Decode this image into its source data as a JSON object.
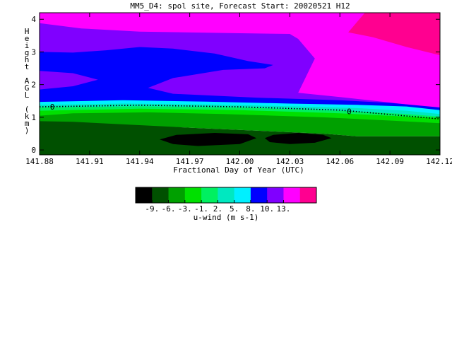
{
  "chart_data": {
    "type": "heatmap",
    "title": "MM5_D4: spol site,  Forecast Start: 20020521 H12",
    "xlabel": "Fractional Day of Year (UTC)",
    "ylabel": "Height AGL (km)",
    "x_tick_labels": [
      "141.88",
      "141.91",
      "141.94",
      "141.97",
      "142.00",
      "142.03",
      "142.06",
      "142.09",
      "142.12"
    ],
    "x_ticks": [
      141.88,
      141.91,
      141.94,
      141.97,
      142.0,
      142.03,
      142.06,
      142.09,
      142.12
    ],
    "xlim": [
      141.88,
      142.12
    ],
    "y_tick_labels": [
      "0",
      "1",
      "2",
      "3",
      "4"
    ],
    "y_ticks": [
      0,
      1,
      2,
      3,
      4
    ],
    "ylim": [
      -0.15,
      4.2
    ],
    "contour_label": "0",
    "contour_zero_line": [
      {
        "x": 141.88,
        "y": 1.32
      },
      {
        "x": 141.94,
        "y": 1.37
      },
      {
        "x": 142.0,
        "y": 1.32
      },
      {
        "x": 142.06,
        "y": 1.22
      },
      {
        "x": 142.12,
        "y": 0.95
      }
    ],
    "colorbar": {
      "label": "u-wind (m s-1)",
      "tick_labels": [
        "-9.",
        "-6.",
        "-3.",
        "-1.",
        "2.",
        "5.",
        "8.",
        "10.",
        "13."
      ],
      "colors": [
        "#000000",
        "#005000",
        "#00a000",
        "#00e000",
        "#00f060",
        "#00e8c0",
        "#00f0ff",
        "#0000ff",
        "#8000ff",
        "#ff00ff",
        "#ff0090"
      ]
    },
    "regions": [
      {
        "level": "5 to 8",
        "color": "#8000ff",
        "polygon": [
          [
            141.88,
            4.2
          ],
          [
            142.12,
            4.2
          ],
          [
            142.12,
            1.28
          ],
          [
            141.88,
            1.5
          ]
        ]
      },
      {
        "level": "8 to 10",
        "color": "#ff00ff",
        "polygon": [
          [
            141.88,
            4.2
          ],
          [
            142.12,
            4.2
          ],
          [
            142.12,
            1.28
          ],
          [
            142.06,
            1.62
          ],
          [
            142.035,
            1.75
          ],
          [
            142.045,
            2.8
          ],
          [
            142.035,
            3.4
          ],
          [
            142.03,
            3.55
          ],
          [
            141.99,
            3.58
          ],
          [
            141.94,
            3.62
          ],
          [
            141.905,
            3.72
          ],
          [
            141.88,
            3.88
          ]
        ]
      },
      {
        "level": "10 to 13",
        "color": "#ff0090",
        "polygon": [
          [
            142.075,
            4.2
          ],
          [
            142.12,
            4.2
          ],
          [
            142.12,
            2.9
          ],
          [
            142.1,
            3.15
          ],
          [
            142.08,
            3.45
          ],
          [
            142.065,
            3.6
          ]
        ]
      },
      {
        "level": "2 to 5",
        "color": "#0000ff",
        "polygon": [
          [
            141.88,
            3.0
          ],
          [
            141.9,
            2.98
          ],
          [
            141.92,
            3.05
          ],
          [
            141.94,
            3.15
          ],
          [
            141.96,
            3.1
          ],
          [
            141.985,
            2.95
          ],
          [
            142.005,
            2.72
          ],
          [
            142.02,
            2.6
          ],
          [
            142.015,
            2.5
          ],
          [
            141.99,
            2.45
          ],
          [
            141.96,
            2.2
          ],
          [
            141.945,
            1.9
          ],
          [
            141.96,
            1.72
          ],
          [
            142.01,
            1.6
          ],
          [
            142.06,
            1.52
          ],
          [
            142.09,
            1.44
          ],
          [
            142.12,
            1.3
          ],
          [
            142.12,
            1.02
          ],
          [
            141.88,
            1.35
          ],
          [
            141.88,
            1.85
          ],
          [
            141.9,
            1.95
          ],
          [
            141.915,
            2.15
          ],
          [
            141.9,
            2.35
          ],
          [
            141.88,
            2.42
          ]
        ]
      },
      {
        "level": "-1 to 2",
        "color": "#00f0ff",
        "polygon": [
          [
            141.88,
            1.47
          ],
          [
            141.93,
            1.52
          ],
          [
            141.98,
            1.48
          ],
          [
            142.03,
            1.42
          ],
          [
            142.07,
            1.38
          ],
          [
            142.1,
            1.33
          ],
          [
            142.12,
            1.22
          ],
          [
            142.12,
            0.95
          ],
          [
            141.88,
            1.3
          ]
        ]
      },
      {
        "level": "-1 to 2",
        "color": "#00e8c0",
        "polygon": [
          [
            141.88,
            1.38
          ],
          [
            141.93,
            1.42
          ],
          [
            141.98,
            1.39
          ],
          [
            142.03,
            1.34
          ],
          [
            142.07,
            1.28
          ],
          [
            142.1,
            1.2
          ],
          [
            142.12,
            1.1
          ],
          [
            142.12,
            0.92
          ],
          [
            141.88,
            1.26
          ]
        ]
      },
      {
        "level": "-1 to 2",
        "color": "#00f060",
        "polygon": [
          [
            141.88,
            1.3
          ],
          [
            141.94,
            1.34
          ],
          [
            142.0,
            1.3
          ],
          [
            142.06,
            1.2
          ],
          [
            142.1,
            1.1
          ],
          [
            142.12,
            1.02
          ],
          [
            142.12,
            0.88
          ],
          [
            141.88,
            1.18
          ]
        ]
      },
      {
        "level": "-3 to -1",
        "color": "#00e000",
        "polygon": [
          [
            141.88,
            1.2
          ],
          [
            141.94,
            1.26
          ],
          [
            142.0,
            1.22
          ],
          [
            142.06,
            1.12
          ],
          [
            142.1,
            1.02
          ],
          [
            142.12,
            0.98
          ],
          [
            142.12,
            0.7
          ],
          [
            141.88,
            1.0
          ]
        ]
      },
      {
        "level": "-6 to -3",
        "color": "#00a000",
        "polygon": [
          [
            141.88,
            1.05
          ],
          [
            141.9,
            1.12
          ],
          [
            141.945,
            1.15
          ],
          [
            141.99,
            1.1
          ],
          [
            142.05,
            1.0
          ],
          [
            142.09,
            0.9
          ],
          [
            142.12,
            0.82
          ],
          [
            142.12,
            0.42
          ],
          [
            142.07,
            0.42
          ],
          [
            142.05,
            0.5
          ],
          [
            141.97,
            0.68
          ],
          [
            141.9,
            0.82
          ],
          [
            141.88,
            0.82
          ]
        ]
      },
      {
        "level": "-9 to -6",
        "color": "#005000",
        "polygon": [
          [
            141.88,
            -0.15
          ],
          [
            142.12,
            -0.15
          ],
          [
            142.12,
            0.42
          ],
          [
            142.07,
            0.42
          ],
          [
            142.05,
            0.5
          ],
          [
            141.97,
            0.68
          ],
          [
            141.9,
            0.86
          ],
          [
            141.88,
            0.88
          ]
        ]
      },
      {
        "level": "< -9",
        "color": "#000000",
        "polygon": [
          [
            141.952,
            0.32
          ],
          [
            141.962,
            0.46
          ],
          [
            141.985,
            0.52
          ],
          [
            142.005,
            0.48
          ],
          [
            142.01,
            0.36
          ],
          [
            142.0,
            0.18
          ],
          [
            141.975,
            0.12
          ],
          [
            141.96,
            0.18
          ]
        ]
      },
      {
        "level": "< -9",
        "color": "#000000",
        "polygon": [
          [
            142.015,
            0.36
          ],
          [
            142.02,
            0.46
          ],
          [
            142.035,
            0.52
          ],
          [
            142.05,
            0.46
          ],
          [
            142.055,
            0.36
          ],
          [
            142.045,
            0.22
          ],
          [
            142.03,
            0.18
          ],
          [
            142.018,
            0.24
          ]
        ]
      }
    ]
  }
}
